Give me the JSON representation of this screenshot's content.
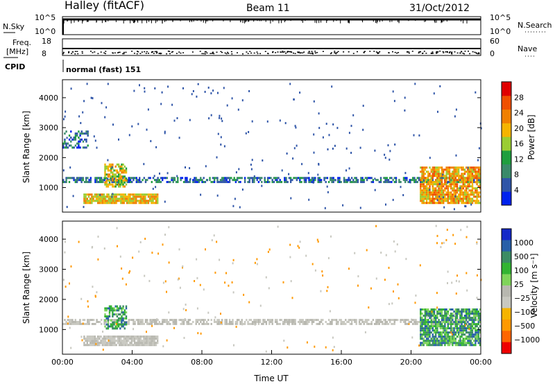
{
  "header": {
    "station": "Halley (fitACF)",
    "beam": "Beam 11",
    "date": "31/Oct/2012"
  },
  "params": {
    "nsky_label": "N.Sky",
    "nsky_ticks": [
      "10^5",
      "10^0"
    ],
    "nsearch_label": "N.Search",
    "nsearch_ticks": [
      "10^5",
      "10^0"
    ],
    "freq_label_1": "Freq.",
    "freq_label_2": "[MHz]",
    "freq_ticks": [
      "18",
      "8"
    ],
    "nave_label": "Nave",
    "nave_ticks": [
      "60",
      "0"
    ],
    "cpid_label": "CPID",
    "cpid_value": "normal (fast) 151"
  },
  "colors": {
    "power": [
      "#0022ee",
      "#2f55a8",
      "#3a8a6a",
      "#1f9e3e",
      "#9acd32",
      "#f5b400",
      "#f08000",
      "#f05000",
      "#e00000"
    ],
    "velocity": [
      "#ee0000",
      "#ff6600",
      "#ff9900",
      "#f5b400",
      "#c8c8c0",
      "#b8b8b0",
      "#7fd45a",
      "#32b432",
      "#3c8c64",
      "#2860a8",
      "#1428c8"
    ]
  },
  "chart_data": [
    {
      "type": "heatmap",
      "name": "power",
      "ylabel": "Slant Range [km]",
      "yticks": [
        "1000",
        "2000",
        "3000",
        "4000"
      ],
      "ylim": [
        180,
        4600
      ],
      "colorbar_label": "Power [dB]",
      "colorbar_ticks": [
        "4",
        "8",
        "12",
        "16",
        "20",
        "24",
        "28"
      ],
      "clim": [
        0,
        32
      ],
      "features": [
        {
          "t0": 0.0,
          "t1": 24.0,
          "r0": 1150,
          "r1": 1350,
          "level": 6,
          "density": 0.65
        },
        {
          "t0": 1.2,
          "t1": 5.5,
          "r0": 450,
          "r1": 800,
          "level": 20,
          "density": 0.9
        },
        {
          "t0": 2.4,
          "t1": 3.7,
          "r0": 1000,
          "r1": 1800,
          "level": 18,
          "density": 0.7
        },
        {
          "t0": 20.5,
          "t1": 24.0,
          "r0": 450,
          "r1": 1700,
          "level": 22,
          "density": 0.8
        },
        {
          "t0": 0.0,
          "t1": 1.5,
          "r0": 2300,
          "r1": 2900,
          "level": 6,
          "density": 0.45
        }
      ]
    },
    {
      "type": "heatmap",
      "name": "velocity",
      "xlabel": "Time UT",
      "xticks": [
        "00:00",
        "04:00",
        "08:00",
        "12:00",
        "16:00",
        "20:00",
        "00:00"
      ],
      "xlim": [
        0,
        24
      ],
      "ylabel": "Slant Range [km]",
      "yticks": [
        "1000",
        "2000",
        "3000",
        "4000"
      ],
      "ylim": [
        180,
        4600
      ],
      "colorbar_label": "Velocity [m s⁻¹]",
      "colorbar_ticks": [
        "1000",
        "500",
        "100",
        "25",
        "−25",
        "−100",
        "−500",
        "−1000"
      ],
      "features": [
        {
          "t0": 0.0,
          "t1": 24.0,
          "r0": 1150,
          "r1": 1350,
          "kind": "ground",
          "density": 0.65
        },
        {
          "t0": 1.2,
          "t1": 5.5,
          "r0": 450,
          "r1": 800,
          "kind": "ground",
          "density": 0.9
        },
        {
          "t0": 2.4,
          "t1": 3.7,
          "r0": 1000,
          "r1": 1800,
          "kind": "positive",
          "density": 0.6
        },
        {
          "t0": 20.5,
          "t1": 24.0,
          "r0": 450,
          "r1": 1700,
          "kind": "positive",
          "density": 0.8
        }
      ]
    }
  ]
}
